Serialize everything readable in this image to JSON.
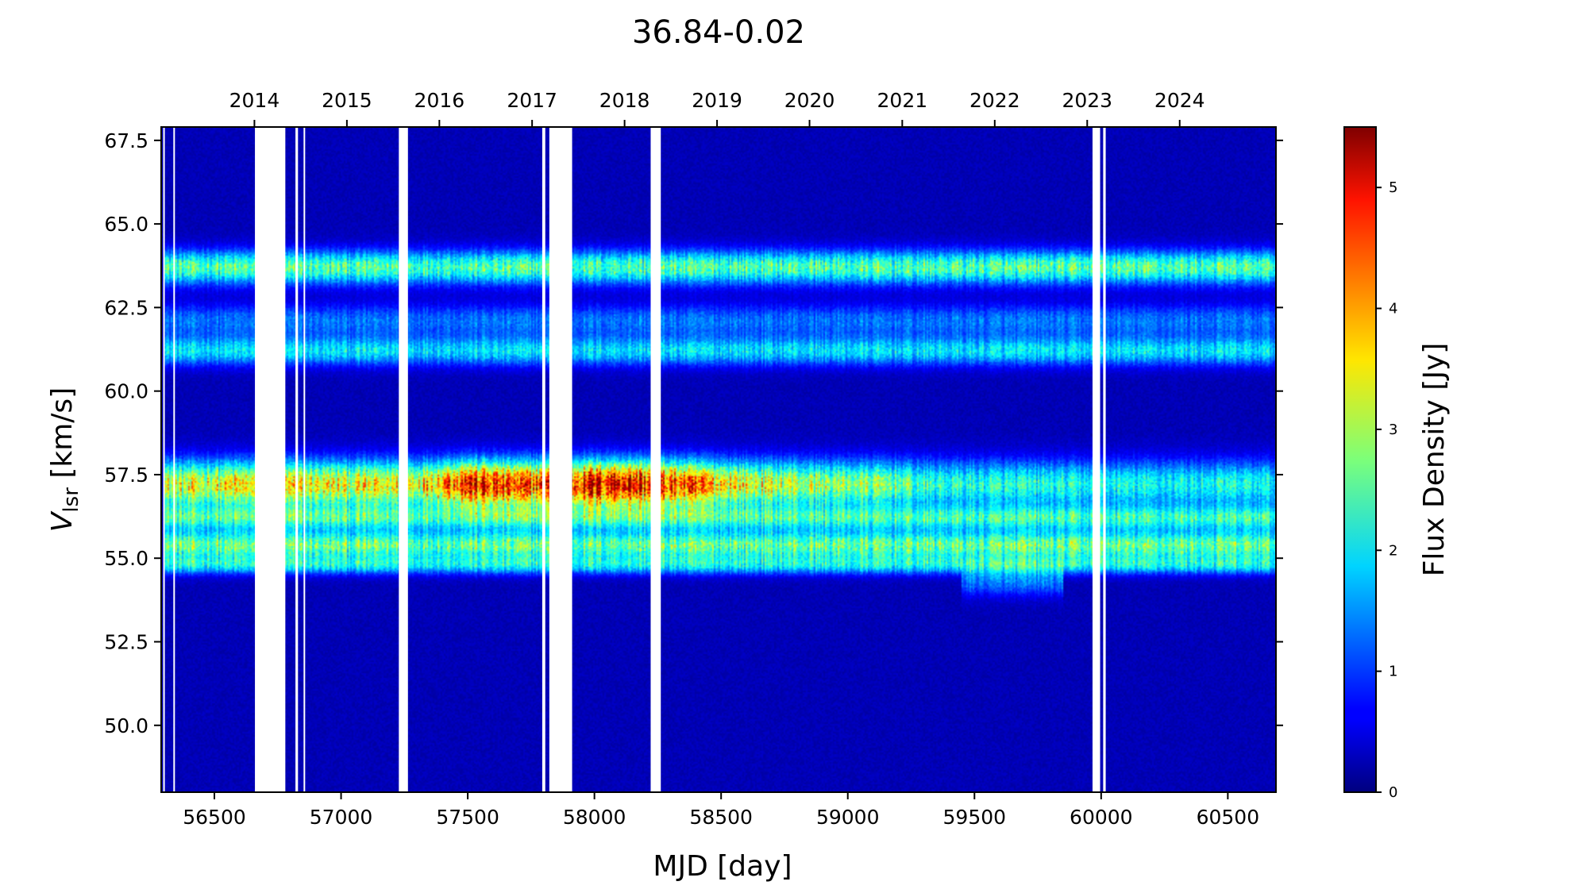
{
  "chart_data": {
    "type": "heatmap",
    "title": "36.84-0.02",
    "xlabel": "MJD [day]",
    "ylabel_main": "V",
    "ylabel_sub": "lsr",
    "ylabel_unit": " [km/s]",
    "colorbar_label": "Flux Density [Jy]",
    "colormap": "jet",
    "xlim": [
      56290,
      60690
    ],
    "ylim": [
      48.0,
      67.9
    ],
    "clim": [
      0,
      5.5
    ],
    "x_ticks": [
      "56500",
      "57000",
      "57500",
      "58000",
      "58500",
      "59000",
      "59500",
      "60000",
      "60500"
    ],
    "x_tick_values": [
      56500,
      57000,
      57500,
      58000,
      58500,
      59000,
      59500,
      60000,
      60500
    ],
    "y_ticks": [
      "50.0",
      "52.5",
      "55.0",
      "57.5",
      "60.0",
      "62.5",
      "65.0",
      "67.5"
    ],
    "y_tick_values": [
      50.0,
      52.5,
      55.0,
      57.5,
      60.0,
      62.5,
      65.0,
      67.5
    ],
    "top_axis_years": [
      "2014",
      "2015",
      "2016",
      "2017",
      "2018",
      "2019",
      "2020",
      "2021",
      "2022",
      "2023",
      "2024"
    ],
    "top_axis_mjd": [
      56658,
      57023,
      57388,
      57754,
      58119,
      58484,
      58849,
      59215,
      59580,
      59945,
      60310
    ],
    "colorbar_ticks": [
      "0",
      "1",
      "2",
      "3",
      "4",
      "5"
    ],
    "colorbar_tick_values": [
      0,
      1,
      2,
      3,
      4,
      5
    ],
    "data_gaps_mjd": [
      [
        56298,
        56302
      ],
      [
        56338,
        56344
      ],
      [
        56660,
        56780
      ],
      [
        56820,
        56830
      ],
      [
        56852,
        56858
      ],
      [
        57228,
        57264
      ],
      [
        57794,
        57806
      ],
      [
        57822,
        57912
      ],
      [
        58222,
        58262
      ],
      [
        59966,
        59996
      ],
      [
        60008,
        60018
      ]
    ],
    "features": [
      {
        "velocity": 63.7,
        "width": 0.35,
        "peak_flux": 2.2,
        "mjd_range": [
          56300,
          60690
        ]
      },
      {
        "velocity": 62.1,
        "width": 0.35,
        "peak_flux": 1.0,
        "mjd_range": [
          56300,
          60690
        ]
      },
      {
        "velocity": 61.2,
        "width": 0.3,
        "peak_flux": 1.6,
        "mjd_range": [
          56300,
          60690
        ]
      },
      {
        "velocity": 57.2,
        "width": 0.5,
        "peak_flux": 4.9,
        "mjd_range": [
          56300,
          60690
        ]
      },
      {
        "velocity": 56.2,
        "width": 0.25,
        "peak_flux": 1.8,
        "mjd_range": [
          56300,
          60690
        ]
      },
      {
        "velocity": 55.4,
        "width": 0.3,
        "peak_flux": 2.3,
        "mjd_range": [
          56300,
          60690
        ]
      },
      {
        "velocity": 54.8,
        "width": 0.2,
        "peak_flux": 1.6,
        "mjd_range": [
          56300,
          60690
        ]
      },
      {
        "velocity": 54.3,
        "width": 0.3,
        "peak_flux": 1.0,
        "mjd_range": [
          59450,
          59850
        ]
      }
    ],
    "flux_history_57p2": [
      {
        "mjd": 56300,
        "flux": 2.8
      },
      {
        "mjd": 56700,
        "flux": 3.2
      },
      {
        "mjd": 57000,
        "flux": 3.0
      },
      {
        "mjd": 57300,
        "flux": 3.1
      },
      {
        "mjd": 57500,
        "flux": 4.6
      },
      {
        "mjd": 57700,
        "flux": 4.0
      },
      {
        "mjd": 57950,
        "flux": 4.6
      },
      {
        "mjd": 58100,
        "flux": 4.9
      },
      {
        "mjd": 58300,
        "flux": 4.2
      },
      {
        "mjd": 58600,
        "flux": 3.0
      },
      {
        "mjd": 58900,
        "flux": 2.6
      },
      {
        "mjd": 59200,
        "flux": 2.4
      },
      {
        "mjd": 59300,
        "flux": 2.0
      },
      {
        "mjd": 59600,
        "flux": 1.9
      },
      {
        "mjd": 60000,
        "flux": 1.8
      },
      {
        "mjd": 60690,
        "flux": 1.8
      }
    ]
  }
}
